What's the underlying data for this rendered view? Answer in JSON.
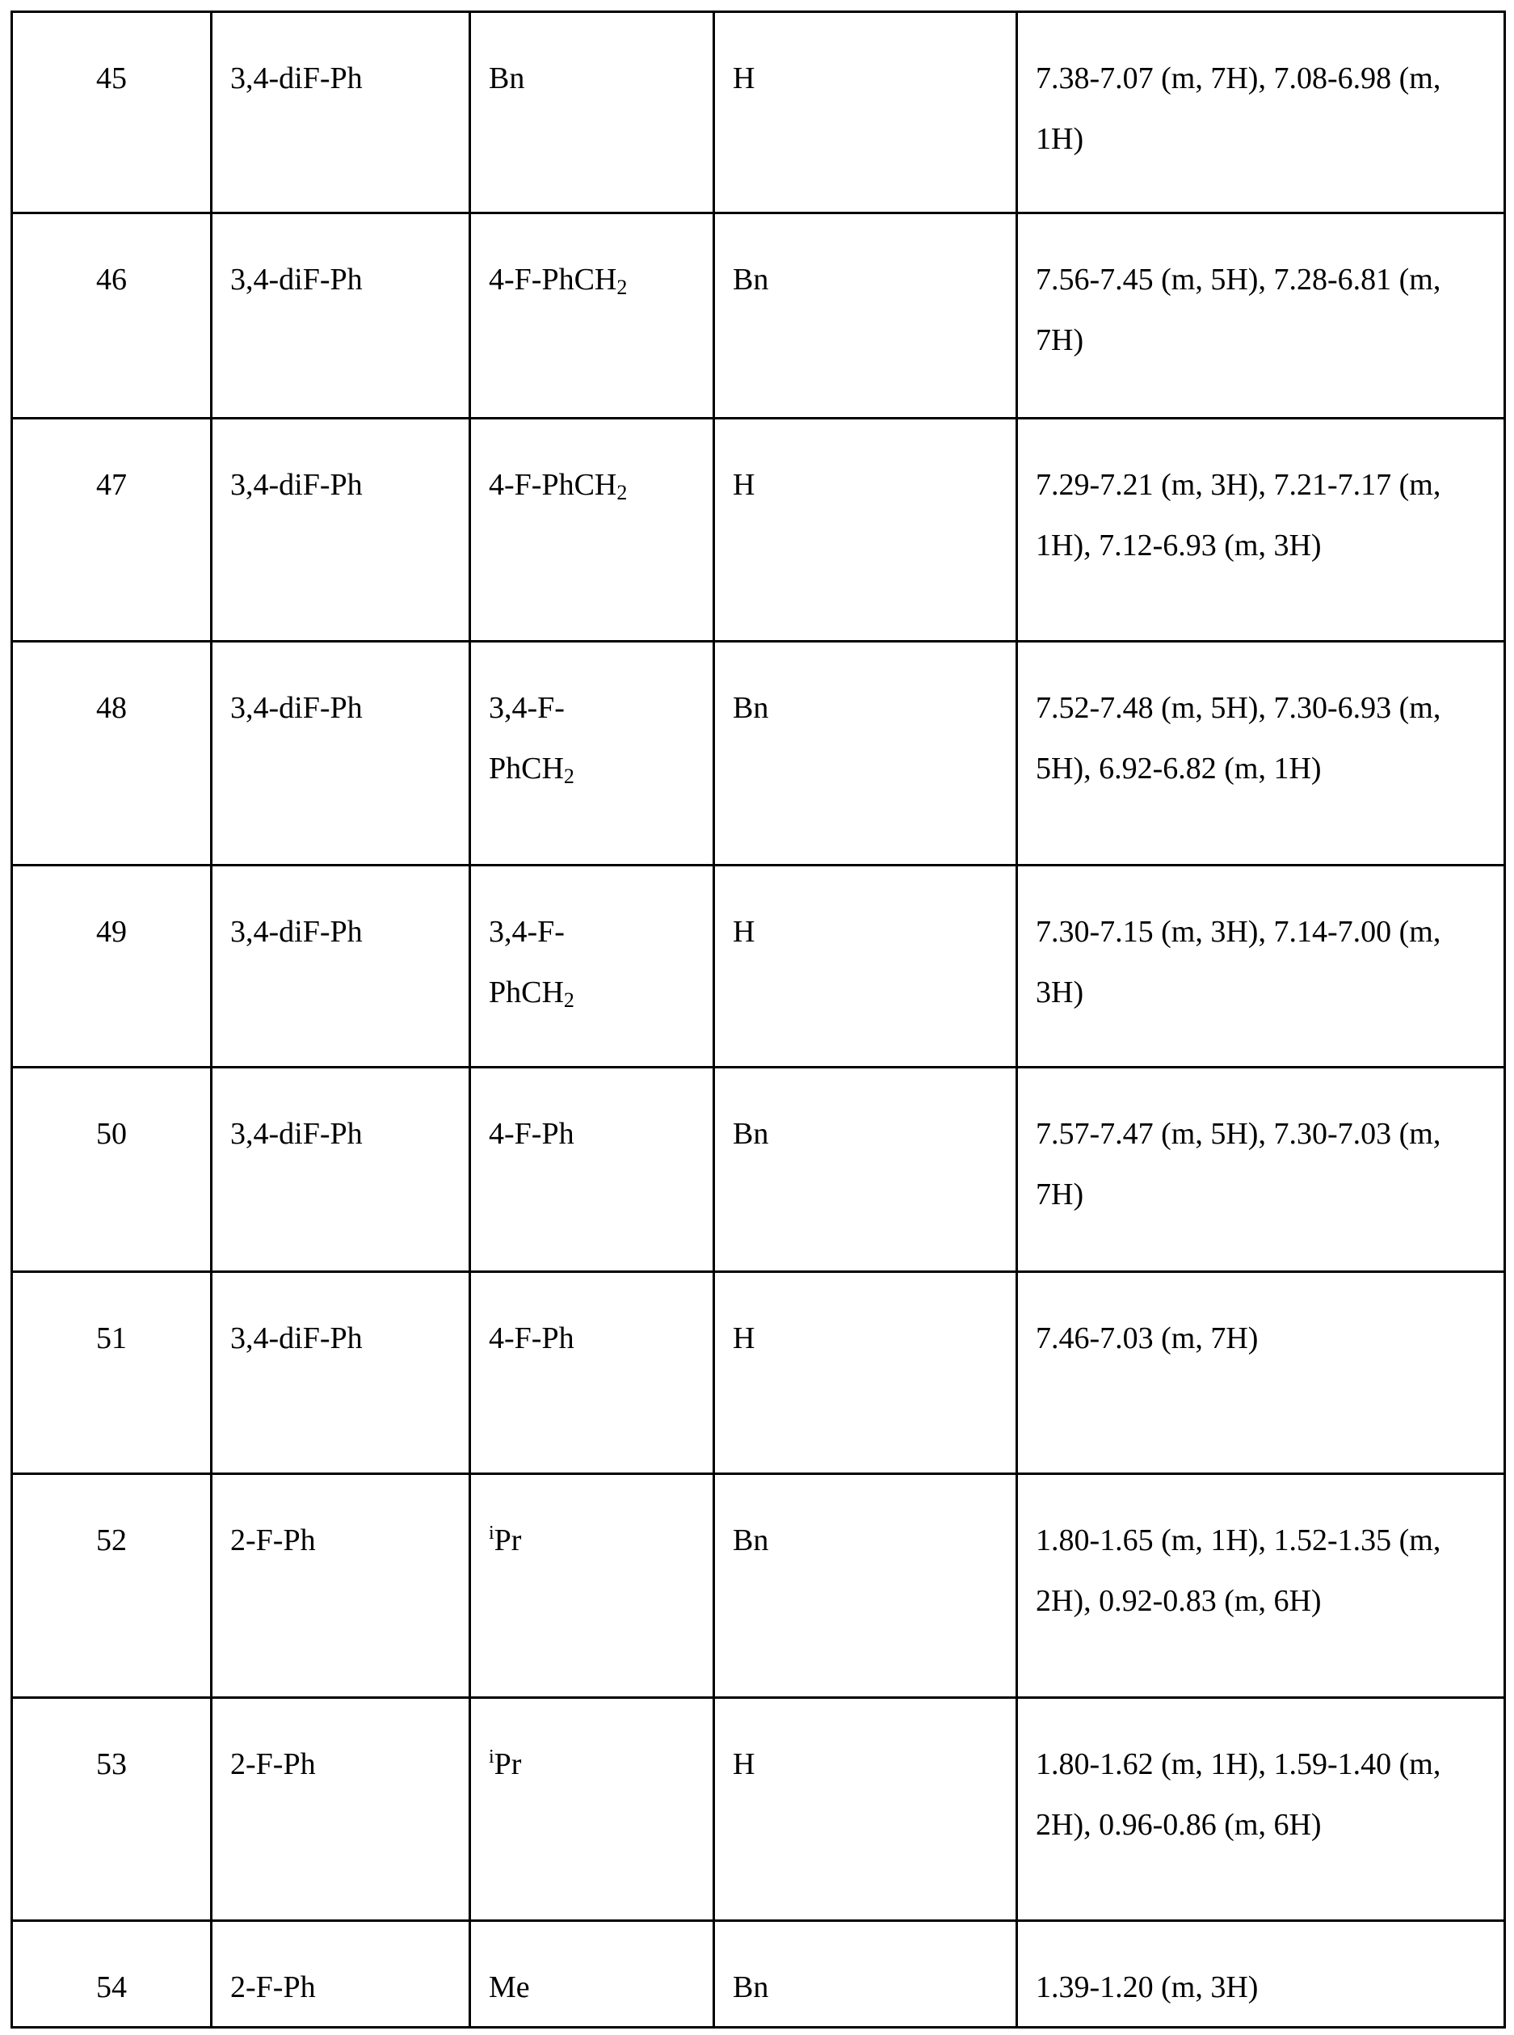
{
  "table": {
    "rows": [
      {
        "no": "45",
        "r1": {
          "text": "3,4-diF-Ph"
        },
        "r2": {
          "text": "Bn"
        },
        "r3": {
          "text": "H"
        },
        "nmr": "7.38-7.07 (m, 7H), 7.08-6.98 (m, 1H)"
      },
      {
        "no": "46",
        "r1": {
          "text": "3,4-diF-Ph"
        },
        "r2": {
          "text": "4-F-PhCH",
          "sub": "2"
        },
        "r3": {
          "text": "Bn"
        },
        "nmr": "7.56-7.45 (m, 5H), 7.28-6.81 (m, 7H)"
      },
      {
        "no": "47",
        "r1": {
          "text": "3,4-diF-Ph"
        },
        "r2": {
          "text": "4-F-PhCH",
          "sub": "2"
        },
        "r3": {
          "text": "H"
        },
        "nmr": "7.29-7.21 (m, 3H), 7.21-7.17 (m, 1H), 7.12-6.93 (m, 3H)"
      },
      {
        "no": "48",
        "r1": {
          "text": "3,4-diF-Ph"
        },
        "r2": {
          "pre": "3,4-F-",
          "text": "PhCH",
          "sub": "2"
        },
        "r3": {
          "text": "Bn"
        },
        "nmr": "7.52-7.48 (m, 5H), 7.30-6.93 (m, 5H), 6.92-6.82 (m, 1H)"
      },
      {
        "no": "49",
        "r1": {
          "text": "3,4-diF-Ph"
        },
        "r2": {
          "pre": "3,4-F-",
          "text": "PhCH",
          "sub": "2"
        },
        "r3": {
          "text": "H"
        },
        "nmr": "7.30-7.15 (m, 3H), 7.14-7.00 (m, 3H)"
      },
      {
        "no": "50",
        "r1": {
          "text": "3,4-diF-Ph"
        },
        "r2": {
          "text": "4-F-Ph"
        },
        "r3": {
          "text": "Bn"
        },
        "nmr": "7.57-7.47 (m, 5H), 7.30-7.03 (m, 7H)"
      },
      {
        "no": "51",
        "r1": {
          "text": "3,4-diF-Ph"
        },
        "r2": {
          "text": "4-F-Ph"
        },
        "r3": {
          "text": "H"
        },
        "nmr": "7.46-7.03 (m, 7H)"
      },
      {
        "no": "52",
        "r1": {
          "text": "2-F-Ph"
        },
        "r2": {
          "sup": "i",
          "text": "Pr"
        },
        "r3": {
          "text": "Bn"
        },
        "nmr": "1.80-1.65 (m, 1H), 1.52-1.35 (m, 2H), 0.92-0.83 (m, 6H)"
      },
      {
        "no": "53",
        "r1": {
          "text": "2-F-Ph"
        },
        "r2": {
          "sup": "i",
          "text": "Pr"
        },
        "r3": {
          "text": "H"
        },
        "nmr": "1.80-1.62 (m, 1H), 1.59-1.40 (m, 2H), 0.96-0.86 (m, 6H)"
      },
      {
        "no": "54",
        "r1": {
          "text": "2-F-Ph"
        },
        "r2": {
          "text": "Me"
        },
        "r3": {
          "text": "Bn"
        },
        "nmr": "1.39-1.20 (m, 3H)"
      }
    ]
  }
}
